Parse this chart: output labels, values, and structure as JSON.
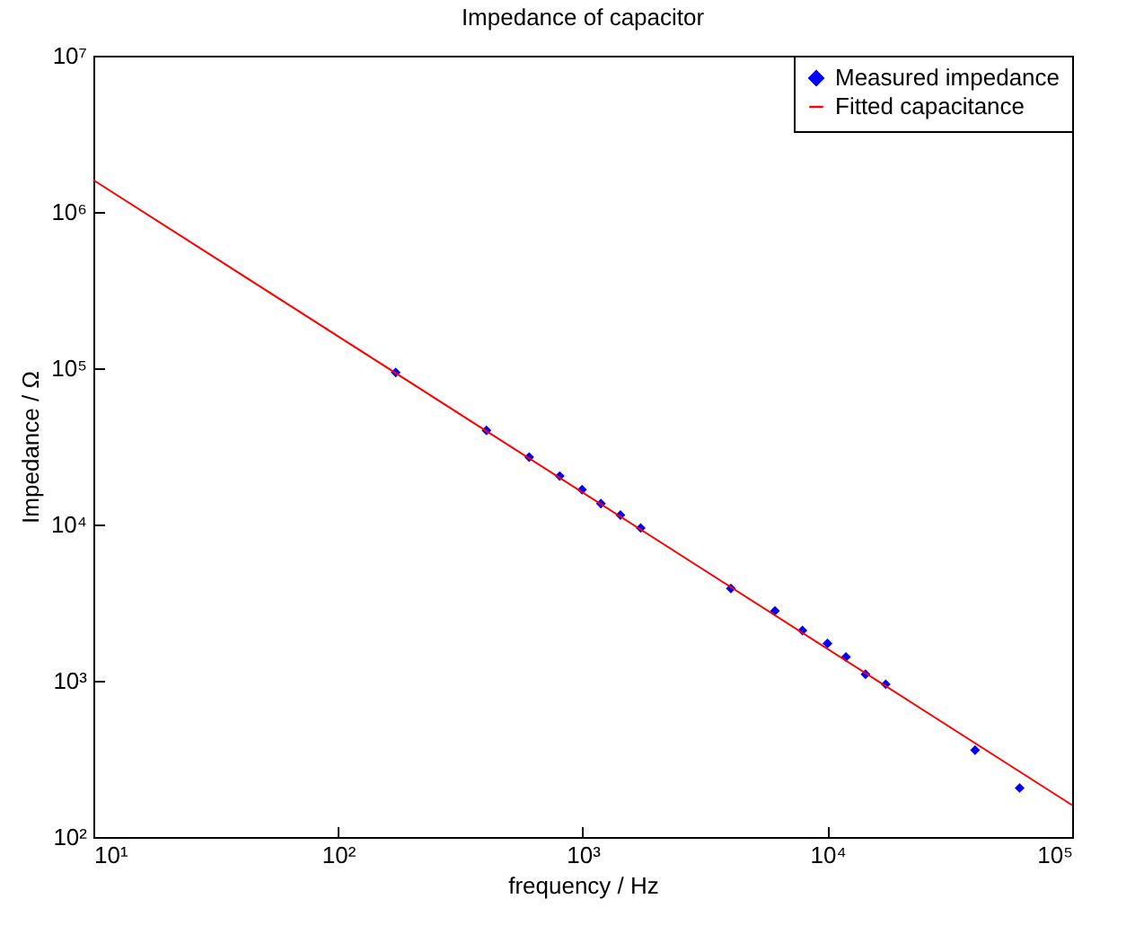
{
  "chart_data": {
    "type": "scatter",
    "title": "Impedance of capacitor",
    "xlabel": "frequency / Hz",
    "ylabel": "Impedance / Ω",
    "log": "xy",
    "xlim": [
      10,
      100000
    ],
    "ylim": [
      100,
      10000000
    ],
    "xticks": [
      {
        "value": 10,
        "label": "10¹"
      },
      {
        "value": 100,
        "label": "10²"
      },
      {
        "value": 1000,
        "label": "10³"
      },
      {
        "value": 10000,
        "label": "10⁴"
      },
      {
        "value": 100000,
        "label": "10⁵"
      }
    ],
    "yticks": [
      {
        "value": 100,
        "label": "10²"
      },
      {
        "value": 1000,
        "label": "10³"
      },
      {
        "value": 10000,
        "label": "10⁴"
      },
      {
        "value": 100000,
        "label": "10⁵"
      },
      {
        "value": 1000000,
        "label": "10⁶"
      },
      {
        "value": 10000000,
        "label": "10⁷"
      }
    ],
    "grid": false,
    "legend": "top right",
    "series": [
      {
        "name": "Measured impedance",
        "marker": "diamond",
        "color": "#0000ff",
        "x": [
          172,
          404,
          604,
          805,
          993,
          1186,
          1425,
          1725,
          4030,
          6100,
          7900,
          10000,
          11900,
          14300,
          17300,
          40100,
          61000
        ],
        "values": [
          94000,
          40000,
          27000,
          20400,
          16700,
          13600,
          11500,
          9500,
          3900,
          2800,
          2100,
          1730,
          1420,
          1100,
          950,
          360,
          206
        ]
      },
      {
        "name": "Fitted capacitance",
        "type": "line",
        "marker": "none",
        "line_style": "solid",
        "color": "#ff0000",
        "x": [
          10,
          100000
        ],
        "values": [
          1600000,
          160
        ]
      }
    ]
  }
}
